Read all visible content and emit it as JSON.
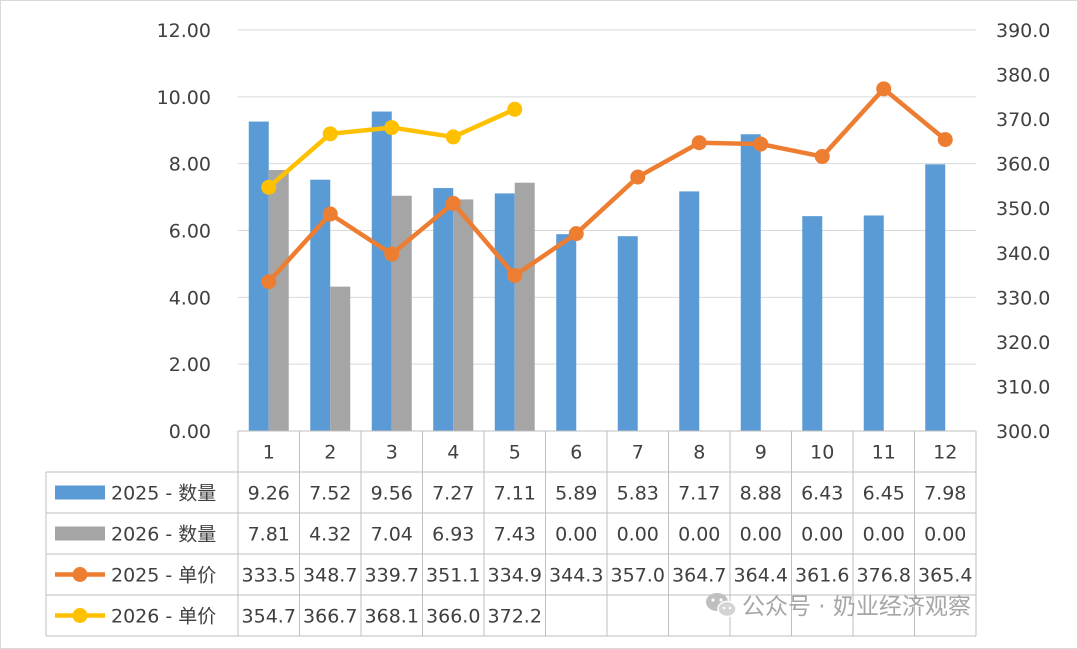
{
  "chart_data": {
    "type": "bar",
    "categories": [
      "1",
      "2",
      "3",
      "4",
      "5",
      "6",
      "7",
      "8",
      "9",
      "10",
      "11",
      "12"
    ],
    "series": [
      {
        "name": "2025 - 数量",
        "type": "bar",
        "axis": "left",
        "color": "#5b9bd5",
        "values": [
          9.26,
          7.52,
          9.56,
          7.27,
          7.11,
          5.89,
          5.83,
          7.17,
          8.88,
          6.43,
          6.45,
          7.98
        ],
        "table_values": [
          "9.26",
          "7.52",
          "9.56",
          "7.27",
          "7.11",
          "5.89",
          "5.83",
          "7.17",
          "8.88",
          "6.43",
          "6.45",
          "7.98"
        ]
      },
      {
        "name": "2026 - 数量",
        "type": "bar",
        "axis": "left",
        "color": "#a5a5a5",
        "values": [
          7.81,
          4.32,
          7.04,
          6.93,
          7.43,
          0.0,
          0.0,
          0.0,
          0.0,
          0.0,
          0.0,
          0.0
        ],
        "table_values": [
          "7.81",
          "4.32",
          "7.04",
          "6.93",
          "7.43",
          "0.00",
          "0.00",
          "0.00",
          "0.00",
          "0.00",
          "0.00",
          "0.00"
        ]
      },
      {
        "name": "2025 -  单价",
        "type": "line",
        "axis": "right",
        "color": "#ed7d31",
        "values": [
          333.5,
          348.7,
          339.7,
          351.1,
          334.9,
          344.3,
          357.0,
          364.7,
          364.4,
          361.6,
          376.8,
          365.4
        ],
        "table_values": [
          "333.5",
          "348.7",
          "339.7",
          "351.1",
          "334.9",
          "344.3",
          "357.0",
          "364.7",
          "364.4",
          "361.6",
          "376.8",
          "365.4"
        ]
      },
      {
        "name": "2026 -  单价",
        "type": "line",
        "axis": "right",
        "color": "#ffc000",
        "values": [
          354.7,
          366.7,
          368.1,
          366.0,
          372.2,
          null,
          null,
          null,
          null,
          null,
          null,
          null
        ],
        "table_values": [
          "354.7",
          "366.7",
          "368.1",
          "366.0",
          "372.2",
          "",
          "",
          "",
          "",
          "",
          "",
          ""
        ]
      }
    ],
    "y_left": {
      "min": 0,
      "max": 12,
      "step": 2,
      "decimals": 2
    },
    "y_right": {
      "min": 300,
      "max": 390,
      "step": 10,
      "decimals": 1
    },
    "grid": true,
    "legend": "data-table"
  },
  "watermark": {
    "text": "公众号 · 奶业经济观察"
  }
}
